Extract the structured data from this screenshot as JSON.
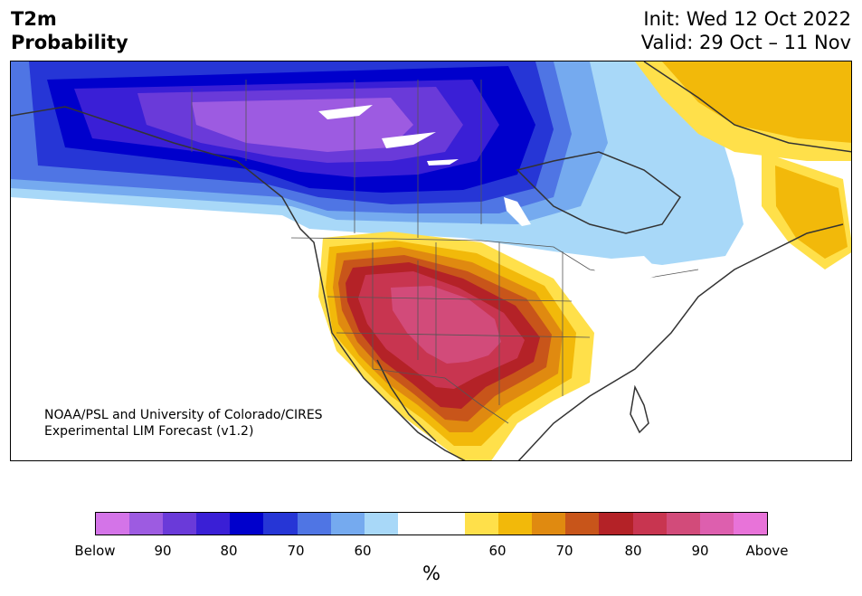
{
  "title": {
    "variable": "T2m",
    "kind": "Probability",
    "init": "Init: Wed 12 Oct 2022",
    "valid": "Valid: 29 Oct – 11 Nov"
  },
  "credit": {
    "line1": "NOAA/PSL and University of Colorado/CIRES",
    "line2": "Experimental LIM Forecast (v1.2)"
  },
  "colorbar": {
    "unit": "%",
    "labels": [
      "Below",
      "90",
      "80",
      "70",
      "60",
      "60",
      "70",
      "80",
      "90",
      "Above"
    ],
    "colors": [
      "#d474e8",
      "#9d5be1",
      "#6a3ad9",
      "#3a1fd6",
      "#0000cc",
      "#2636d6",
      "#4f75e4",
      "#75aaef",
      "#a8d8f8",
      "#ffffff",
      "#ffffff",
      "#ffe04a",
      "#f2b90a",
      "#e08a10",
      "#c8551a",
      "#b42227",
      "#c83550",
      "#d24b7a",
      "#dd5fae",
      "#e873d9"
    ]
  },
  "map": {
    "cold_colors": {
      "c60": "#a8d8f8",
      "c65": "#75aaef",
      "c70": "#4f75e4",
      "c75": "#2636d6",
      "c80": "#0000cc",
      "c85": "#3a1fd6",
      "c90": "#6a3ad9",
      "c95": "#9d5be1"
    },
    "warm_colors": {
      "w60": "#ffe04a",
      "w65": "#f2b90a",
      "w70": "#e08a10",
      "w75": "#c8551a",
      "w80": "#b42227",
      "w85": "#c83550",
      "w90": "#d24b7a"
    }
  }
}
